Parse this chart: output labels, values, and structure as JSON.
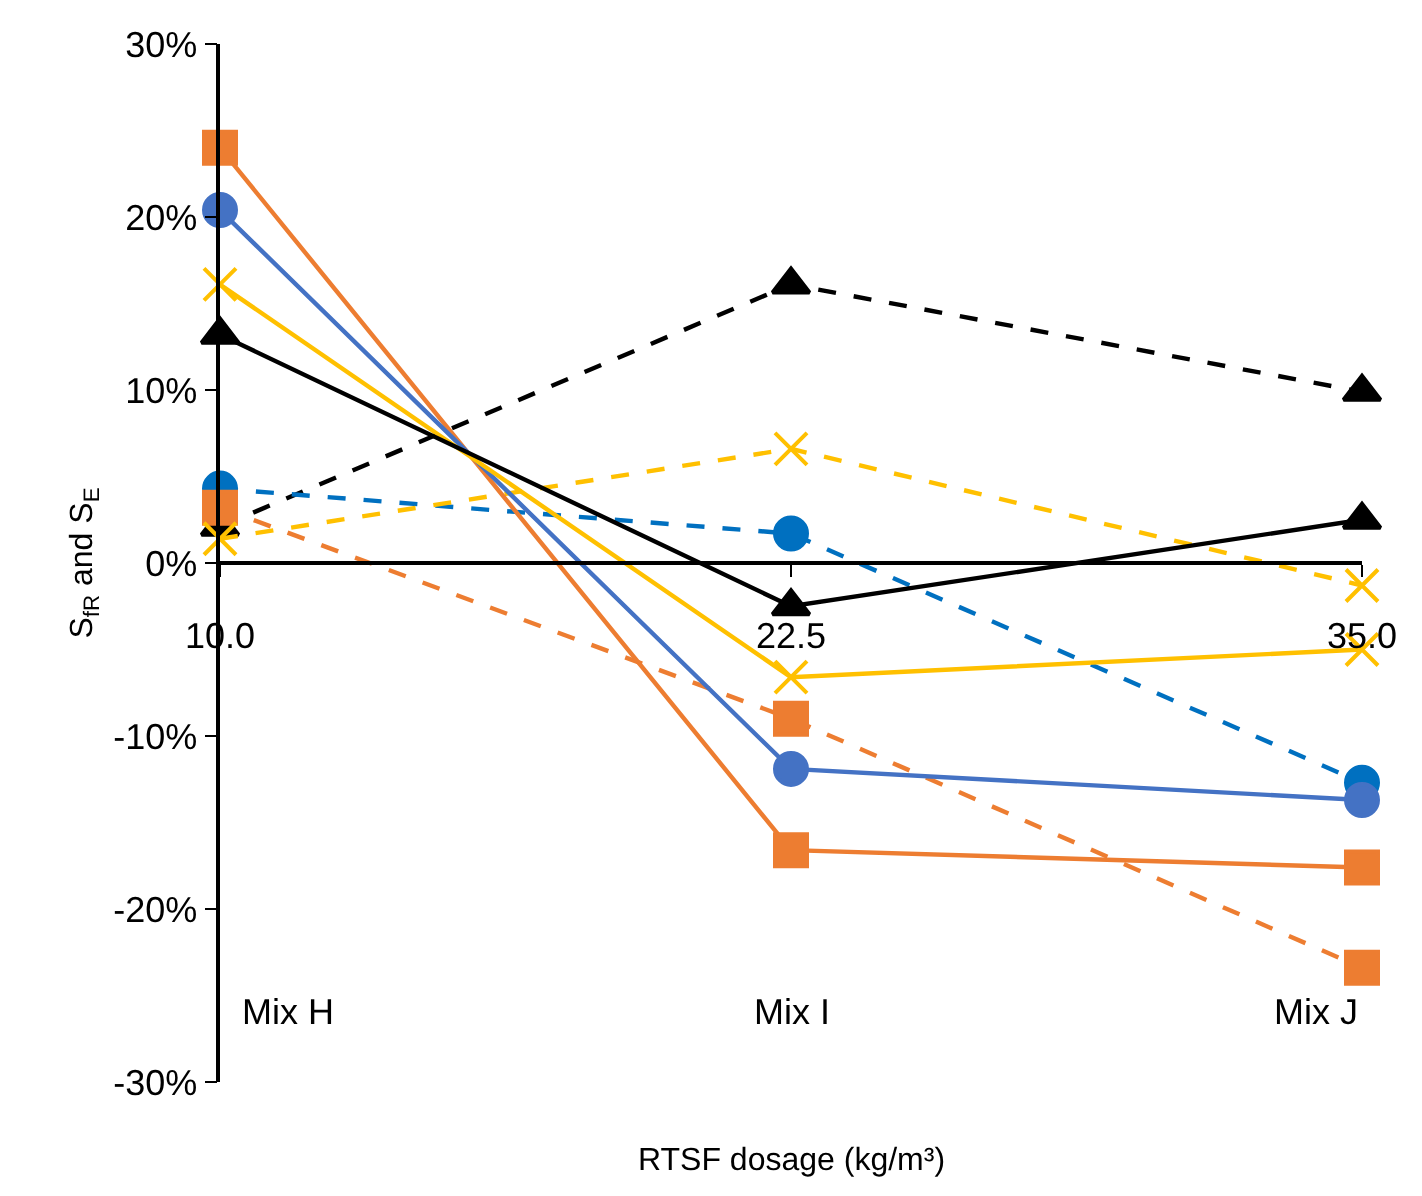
{
  "chart_data": {
    "type": "line",
    "xlabel": "RTSF dosage (kg/m³)",
    "ylabel": "S$_{fR}$ and S$_{E}$",
    "x": [
      10,
      22.5,
      35
    ],
    "xlim": [
      10,
      35
    ],
    "xticks": [
      {
        "value": 10,
        "label": "10.0"
      },
      {
        "value": 22.5,
        "label": "22.5"
      },
      {
        "value": 35,
        "label": "35.0"
      }
    ],
    "ylim": [
      -30,
      30
    ],
    "yticks": [
      {
        "value": -30,
        "label": "-30%"
      },
      {
        "value": -20,
        "label": "-20%"
      },
      {
        "value": -10,
        "label": "-10%"
      },
      {
        "value": 0,
        "label": "0%"
      },
      {
        "value": 10,
        "label": "10%"
      },
      {
        "value": 20,
        "label": "20%"
      },
      {
        "value": 30,
        "label": "30%"
      }
    ],
    "series": [
      {
        "color": "#000000",
        "marker": "triangle",
        "line_style": "dashed",
        "values": [
          2.1,
          16.1,
          9.9
        ]
      },
      {
        "color": "#0070c0",
        "marker": "circle",
        "line_style": "dashed",
        "values": [
          4.3,
          1.7,
          -12.7
        ]
      },
      {
        "color": "#ed7d31",
        "marker": "square",
        "line_style": "dashed",
        "values": [
          3.2,
          -9.0,
          -23.4
        ]
      },
      {
        "color": "#ffc000",
        "marker": "cross",
        "line_style": "dashed",
        "values": [
          1.4,
          6.6,
          -1.3
        ]
      },
      {
        "color": "#ed7d31",
        "marker": "square",
        "line_style": "solid",
        "values": [
          24.0,
          -16.6,
          -17.6
        ]
      },
      {
        "color": "#4472c4",
        "marker": "circle",
        "line_style": "solid",
        "values": [
          20.4,
          -11.9,
          -13.7
        ]
      },
      {
        "color": "#ffc000",
        "marker": "cross",
        "line_style": "solid",
        "values": [
          16.1,
          -6.6,
          -5.0
        ]
      },
      {
        "color": "#000000",
        "marker": "triangle",
        "line_style": "solid",
        "values": [
          13.2,
          -2.5,
          2.5
        ]
      }
    ],
    "annotations": [
      "Mix H",
      "Mix I",
      "Mix J"
    ]
  }
}
